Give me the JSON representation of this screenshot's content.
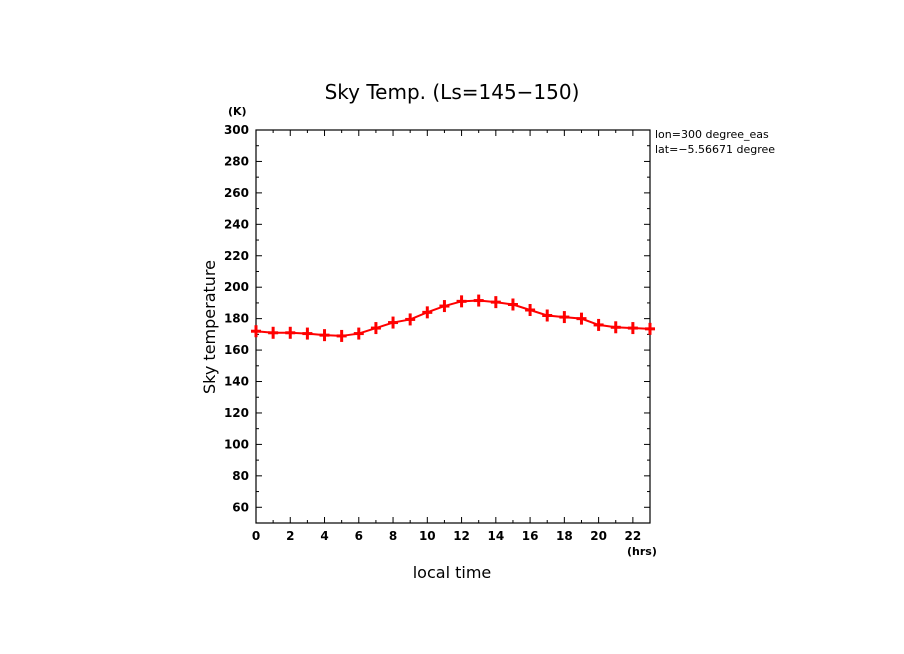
{
  "chart_data": {
    "type": "line",
    "title": "Sky Temp. (Ls=145−150)",
    "xlabel": "local time",
    "ylabel": "Sky temperature",
    "x_unit": "(hrs)",
    "y_unit": "(K)",
    "xlim": [
      0,
      23
    ],
    "ylim": [
      50,
      300
    ],
    "x_ticks": [
      0,
      2,
      4,
      6,
      8,
      10,
      12,
      14,
      16,
      18,
      20,
      22
    ],
    "y_ticks": [
      60,
      80,
      100,
      120,
      140,
      160,
      180,
      200,
      220,
      240,
      260,
      280,
      300
    ],
    "annotations": [
      "lon=300 degree_eas",
      "lat=−5.56671 degree"
    ],
    "series": [
      {
        "color": "#ff0000",
        "marker": "plus",
        "x": [
          0,
          1,
          2,
          3,
          4,
          5,
          6,
          7,
          8,
          9,
          10,
          11,
          12,
          13,
          14,
          15,
          16,
          17,
          18,
          19,
          20,
          21,
          22,
          23
        ],
        "y": [
          172,
          171,
          171,
          170.5,
          169.5,
          169,
          170.5,
          174,
          177.5,
          179.5,
          184,
          188,
          191,
          191.5,
          190.5,
          189,
          185.5,
          182,
          181,
          180,
          176,
          174.5,
          174,
          173.5
        ]
      }
    ]
  }
}
